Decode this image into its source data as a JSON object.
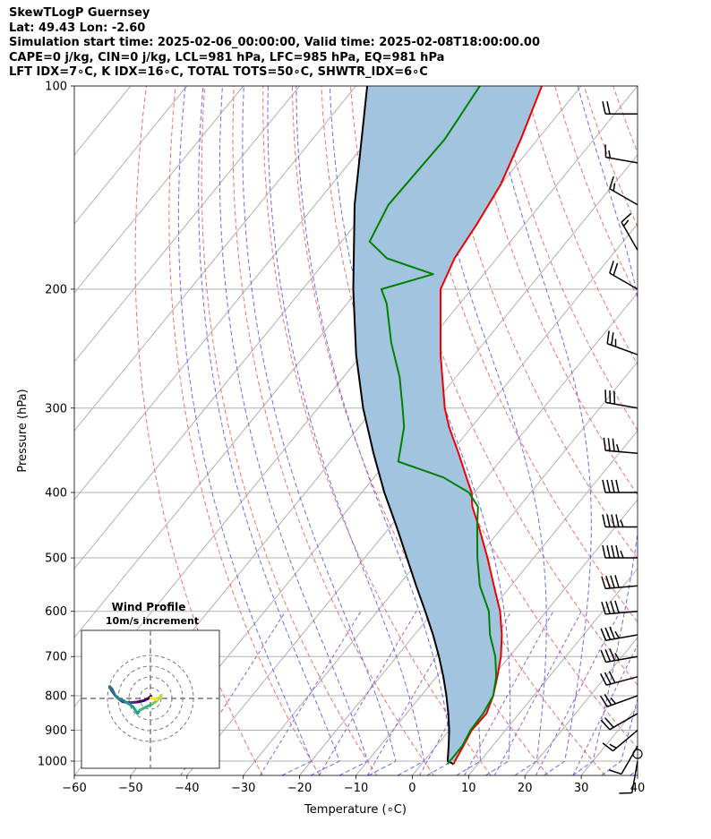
{
  "header": {
    "lines": [
      "SkewTLogP Guernsey",
      "Lat: 49.43   Lon: -2.60",
      "Simulation start time: 2025-02-06_00:00:00, Valid time: 2025-02-08T18:00:00.00",
      "CAPE=0 j/kg, CIN=0 j/kg, LCL=981 hPa, LFC=985 hPa, EQ=981 hPa",
      "LFT IDX=7∘C, K IDX=16∘C, TOTAL TOTS=50∘C, SHWTR_IDX=6∘C"
    ]
  },
  "colors": {
    "temperature": "#ee0000",
    "dewpoint": "#008000",
    "parcel": "#000000",
    "cape_fill": "#a3c4de",
    "dry_adiabat": "#f07070",
    "moist_adiabat": "#6a6af5",
    "mixing_ratio": "#9b59d0",
    "isotherm": "#b0b0b0",
    "grid": "#b0b0b0",
    "barb": "#000000"
  },
  "chart_data": {
    "type": "line",
    "title": "SkewTLogP Guernsey",
    "xlabel": "Temperature (∘C)",
    "ylabel": "Pressure (hPa)",
    "xlim": [
      -60,
      40
    ],
    "ylim": [
      1050,
      100
    ],
    "x_ticks": [
      -60,
      -50,
      -40,
      -30,
      -20,
      -10,
      0,
      10,
      20,
      30,
      40
    ],
    "y_ticks": [
      1000,
      900,
      800,
      700,
      600,
      500,
      400,
      300,
      200,
      100
    ],
    "skew": 45,
    "series": [
      {
        "name": "Temperature",
        "pressure": [
          1010,
          1000,
          950,
          900,
          850,
          800,
          750,
          700,
          650,
          600,
          550,
          500,
          450,
          420,
          400,
          380,
          350,
          320,
          300,
          250,
          200,
          180,
          160,
          140,
          120,
          100
        ],
        "values": [
          5.7,
          5.5,
          4.8,
          4.0,
          4.2,
          2.8,
          0.8,
          -1.5,
          -4.5,
          -8.2,
          -13.0,
          -18.2,
          -24.2,
          -28.3,
          -30.5,
          -33.6,
          -38.5,
          -44.0,
          -47.5,
          -56.0,
          -65.5,
          -67.5,
          -68.5,
          -70.0,
          -73.0,
          -77.0
        ]
      },
      {
        "name": "Dewpoint",
        "pressure": [
          1010,
          1000,
          950,
          900,
          850,
          800,
          750,
          700,
          650,
          600,
          550,
          500,
          450,
          420,
          400,
          380,
          360,
          320,
          300,
          270,
          240,
          210,
          200,
          190,
          180,
          170,
          150,
          120,
          100
        ],
        "values": [
          4.6,
          4.6,
          4.6,
          3.8,
          3.6,
          2.8,
          0.6,
          -2.5,
          -6.6,
          -10.2,
          -15.5,
          -20.0,
          -24.5,
          -27.3,
          -31.0,
          -37.7,
          -48.0,
          -52.0,
          -55.0,
          -60.0,
          -66.5,
          -73.0,
          -76.0,
          -69.0,
          -79.5,
          -85.0,
          -87.0,
          -86.5,
          -88.0
        ]
      },
      {
        "name": "Parcel",
        "pressure": [
          1010,
          1000,
          950,
          900,
          850,
          800,
          750,
          700,
          650,
          600,
          550,
          500,
          450,
          400,
          350,
          300,
          250,
          200,
          150,
          100
        ],
        "values": [
          5.7,
          4.2,
          2.2,
          0.0,
          -2.6,
          -5.5,
          -8.8,
          -12.5,
          -16.7,
          -21.5,
          -26.8,
          -32.5,
          -38.8,
          -46.0,
          -53.6,
          -62.0,
          -71.0,
          -81.0,
          -93.0,
          -108.0
        ]
      }
    ],
    "wind_barbs": {
      "pressures": [
        1000,
        950,
        900,
        850,
        800,
        750,
        700,
        650,
        600,
        550,
        500,
        450,
        400,
        350,
        300,
        250,
        200,
        175,
        150,
        130,
        110
      ],
      "speed_kt": [
        10,
        10,
        15,
        20,
        25,
        30,
        35,
        35,
        40,
        40,
        45,
        45,
        40,
        35,
        30,
        25,
        20,
        15,
        15,
        15,
        20
      ],
      "direction_deg": [
        190,
        210,
        230,
        240,
        250,
        255,
        260,
        260,
        265,
        265,
        270,
        270,
        270,
        275,
        280,
        290,
        300,
        330,
        300,
        280,
        270
      ]
    },
    "inset": {
      "title": "Wind Profile",
      "subtitle": "10m/s increment",
      "ring_spacing_ms": 10,
      "hodograph_u": [
        0.5,
        -2,
        -6,
        -10,
        -14,
        -20,
        -26,
        -30,
        -33,
        -34,
        -36,
        -38,
        -36,
        -33,
        -30,
        -25,
        -22,
        -20,
        -16,
        -12,
        -10,
        -6,
        -2,
        2,
        5,
        7,
        9,
        10,
        9,
        6,
        3,
        1,
        0.5
      ],
      "hodograph_v": [
        2,
        0,
        -2,
        -3,
        -3.5,
        -4,
        -3,
        0,
        3,
        5,
        9,
        11,
        7,
        3,
        0,
        -2,
        -4,
        -5,
        -8,
        -14,
        -11,
        -9,
        -7,
        -5,
        -3,
        -1,
        1,
        3,
        1,
        -1,
        -0.5,
        0,
        0.5
      ]
    }
  }
}
